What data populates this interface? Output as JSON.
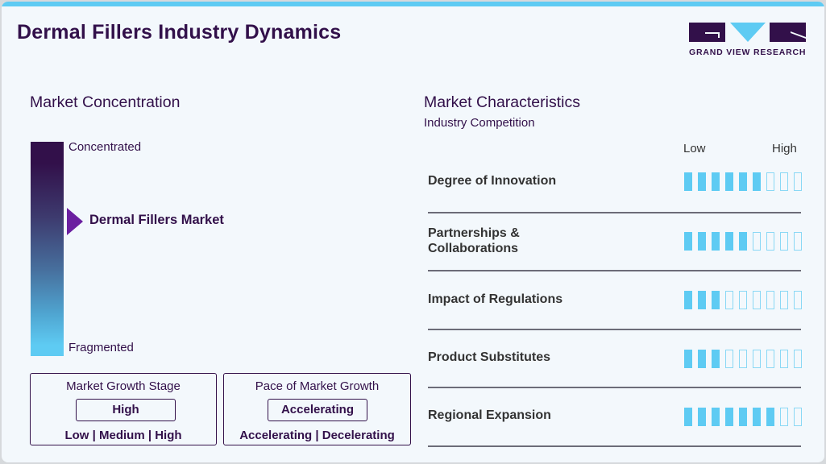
{
  "header": {
    "title": "Dermal Fillers Industry Dynamics",
    "logo_text": "GRAND VIEW RESEARCH"
  },
  "colors": {
    "brand_dark": "#32104a",
    "accent_blue": "#5ecbf3",
    "pointer_purple": "#6b1fa0"
  },
  "market_concentration": {
    "title": "Market Concentration",
    "top_label": "Concentrated",
    "bottom_label": "Fragmented",
    "marker_label": "Dermal Fillers Market"
  },
  "growth_stage": {
    "title": "Market Growth Stage",
    "value": "High",
    "options": "Low | Medium | High"
  },
  "growth_pace": {
    "title": "Pace of Market Growth",
    "value": "Accelerating",
    "options": "Accelerating | Decelerating"
  },
  "characteristics": {
    "title": "Market Characteristics",
    "subtitle": "Industry Competition",
    "scale_low": "Low",
    "scale_high": "High",
    "scale_max": 9,
    "rows": [
      {
        "label": "Degree of Innovation",
        "value": 6
      },
      {
        "label": "Partnerships &\nCollaborations",
        "value": 5
      },
      {
        "label": "Impact of Regulations",
        "value": 3
      },
      {
        "label": "Product Substitutes",
        "value": 3
      },
      {
        "label": "Regional Expansion",
        "value": 7
      }
    ]
  },
  "chart_data": {
    "type": "table",
    "title": "Dermal Fillers Industry Dynamics",
    "scale": {
      "min": 0,
      "max": 9,
      "low_label": "Low",
      "high_label": "High"
    },
    "categories": [
      "Degree of Innovation",
      "Partnerships & Collaborations",
      "Impact of Regulations",
      "Product Substitutes",
      "Regional Expansion"
    ],
    "values": [
      6,
      5,
      3,
      3,
      7
    ],
    "market_concentration_position": "Dermal Fillers Market (mid, ~35% from Concentrated)",
    "market_growth_stage": "High",
    "pace_of_market_growth": "Accelerating"
  }
}
